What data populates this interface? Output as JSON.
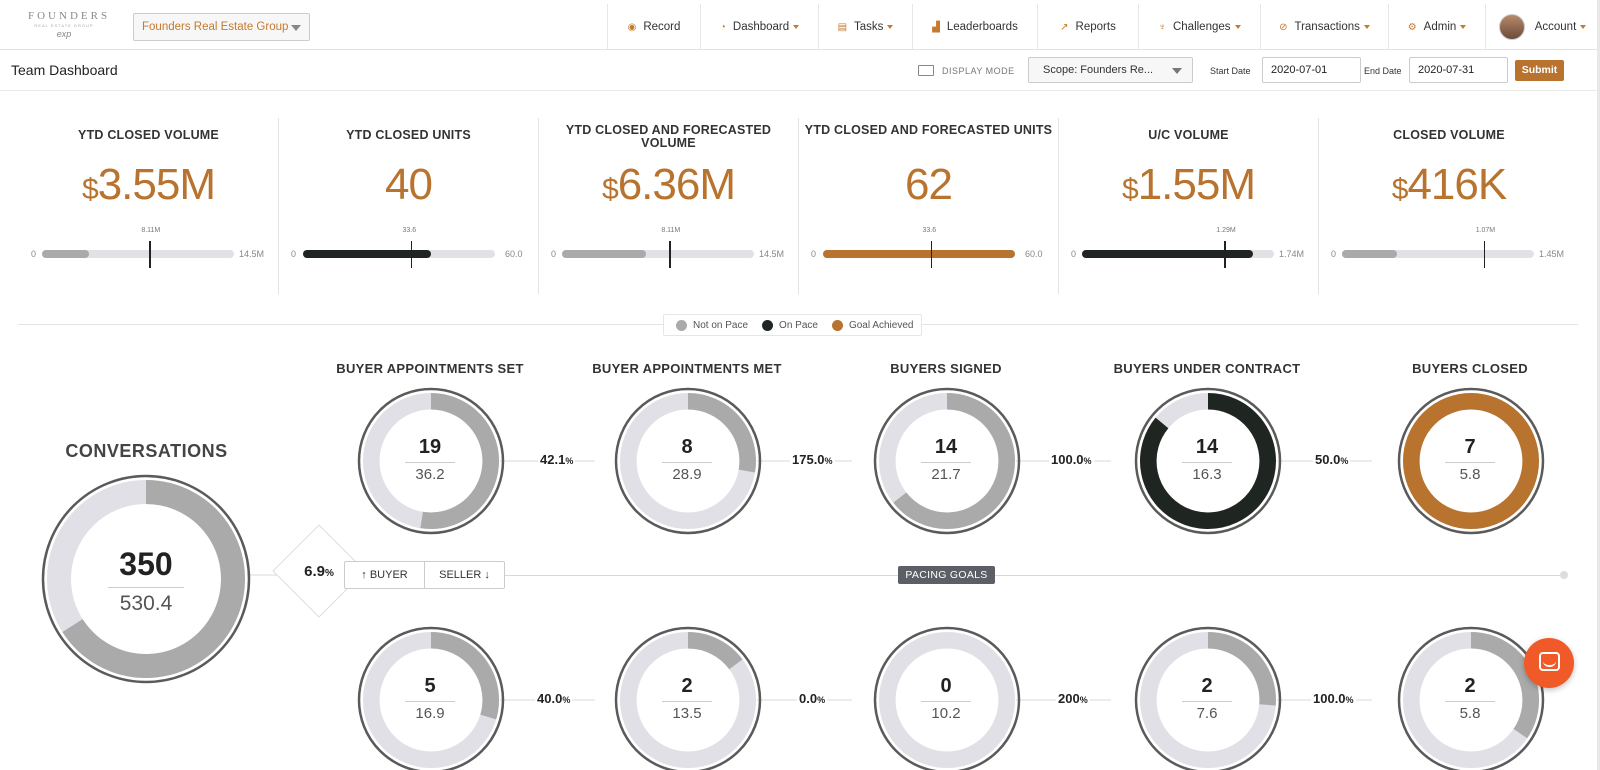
{
  "colors": {
    "accent": "#b8732e",
    "not_on_pace": "#aaaaaa",
    "on_pace": "#1f2621",
    "goal_achieved": "#b8732e"
  },
  "header": {
    "logo_text": "FOUNDERS",
    "logo_sub": "REAL ESTATE GROUP",
    "logo_exp": "exp",
    "org_select": "Founders Real Estate Group",
    "nav": [
      {
        "label": "Record",
        "icon": "record-icon",
        "dropdown": false
      },
      {
        "label": "Dashboard",
        "icon": "dashboard-icon",
        "dropdown": true
      },
      {
        "label": "Tasks",
        "icon": "tasks-icon",
        "dropdown": true
      },
      {
        "label": "Leaderboards",
        "icon": "leaderboards-icon",
        "dropdown": false
      },
      {
        "label": "Reports",
        "icon": "reports-icon",
        "dropdown": false
      },
      {
        "label": "Challenges",
        "icon": "trophy-icon",
        "dropdown": true
      },
      {
        "label": "Transactions",
        "icon": "transactions-icon",
        "dropdown": true
      },
      {
        "label": "Admin",
        "icon": "gear-icon",
        "dropdown": true
      },
      {
        "label": "Account",
        "icon": "avatar",
        "dropdown": true
      }
    ]
  },
  "subbar": {
    "title": "Team Dashboard",
    "display_mode": "DISPLAY MODE",
    "scope": "Scope: Founders Re...",
    "start_label": "Start Date",
    "start_date": "2020-07-01",
    "end_label": "End Date",
    "end_date": "2020-07-31",
    "submit": "Submit"
  },
  "kpis": [
    {
      "label": "YTD CLOSED VOLUME",
      "value": "3.55M",
      "dollar": true,
      "min": "0",
      "max": "14.5M",
      "tick_label": "8.11M",
      "fill_fraction": 0.245,
      "tick_fraction": 0.559,
      "status": "not_on_pace"
    },
    {
      "label": "YTD CLOSED UNITS",
      "value": "40",
      "dollar": false,
      "min": "0",
      "max": "60.0",
      "tick_label": "33.6",
      "fill_fraction": 0.667,
      "tick_fraction": 0.56,
      "status": "on_pace"
    },
    {
      "label": "YTD CLOSED AND FORECASTED VOLUME",
      "value": "6.36M",
      "dollar": true,
      "min": "0",
      "max": "14.5M",
      "tick_label": "8.11M",
      "fill_fraction": 0.439,
      "tick_fraction": 0.559,
      "status": "not_on_pace"
    },
    {
      "label": "YTD CLOSED AND FORECASTED UNITS",
      "value": "62",
      "dollar": false,
      "min": "0",
      "max": "60.0",
      "tick_label": "33.6",
      "fill_fraction": 1.0,
      "tick_fraction": 0.56,
      "status": "goal_achieved"
    },
    {
      "label": "U/C VOLUME",
      "value": "1.55M",
      "dollar": true,
      "min": "0",
      "max": "1.74M",
      "tick_label": "1.29M",
      "fill_fraction": 0.891,
      "tick_fraction": 0.741,
      "status": "on_pace"
    },
    {
      "label": "CLOSED VOLUME",
      "value": "416K",
      "dollar": true,
      "min": "0",
      "max": "1.45M",
      "tick_label": "1.07M",
      "fill_fraction": 0.287,
      "tick_fraction": 0.738,
      "status": "not_on_pace"
    }
  ],
  "legend": [
    "Not on Pace",
    "On Pace",
    "Goal Achieved"
  ],
  "funnel": {
    "conversations": {
      "label": "CONVERSATIONS",
      "actual": "350",
      "goal": "530.4",
      "fraction": 0.66,
      "status": "not_on_pace"
    },
    "stages": [
      "BUYER APPOINTMENTS SET",
      "BUYER APPOINTMENTS MET",
      "BUYERS SIGNED",
      "BUYERS UNDER CONTRACT",
      "BUYERS CLOSED"
    ],
    "buyer_row": [
      {
        "actual": "19",
        "goal": "36.2",
        "fraction": 0.525,
        "status": "not_on_pace"
      },
      {
        "actual": "8",
        "goal": "28.9",
        "fraction": 0.277,
        "status": "not_on_pace"
      },
      {
        "actual": "14",
        "goal": "21.7",
        "fraction": 0.645,
        "status": "not_on_pace"
      },
      {
        "actual": "14",
        "goal": "16.3",
        "fraction": 0.86,
        "status": "on_pace"
      },
      {
        "actual": "7",
        "goal": "5.8",
        "fraction": 1.0,
        "status": "goal_achieved"
      }
    ],
    "buyer_conversions": [
      "42.1",
      "175.0",
      "100.0",
      "50.0"
    ],
    "seller_row": [
      {
        "actual": "5",
        "goal": "16.9",
        "fraction": 0.296,
        "status": "not_on_pace"
      },
      {
        "actual": "2",
        "goal": "13.5",
        "fraction": 0.148,
        "status": "not_on_pace"
      },
      {
        "actual": "0",
        "goal": "10.2",
        "fraction": 0.0,
        "status": "not_on_pace"
      },
      {
        "actual": "2",
        "goal": "7.6",
        "fraction": 0.263,
        "status": "not_on_pace"
      },
      {
        "actual": "2",
        "goal": "5.8",
        "fraction": 0.345,
        "status": "not_on_pace"
      }
    ],
    "seller_conversions": [
      "40.0",
      "0.0",
      "200",
      "100.0"
    ],
    "conversation_rate": "6.9",
    "buyer_toggle": "↑ BUYER",
    "seller_toggle": "SELLER ↓",
    "pacing_goals": "PACING GOALS"
  }
}
